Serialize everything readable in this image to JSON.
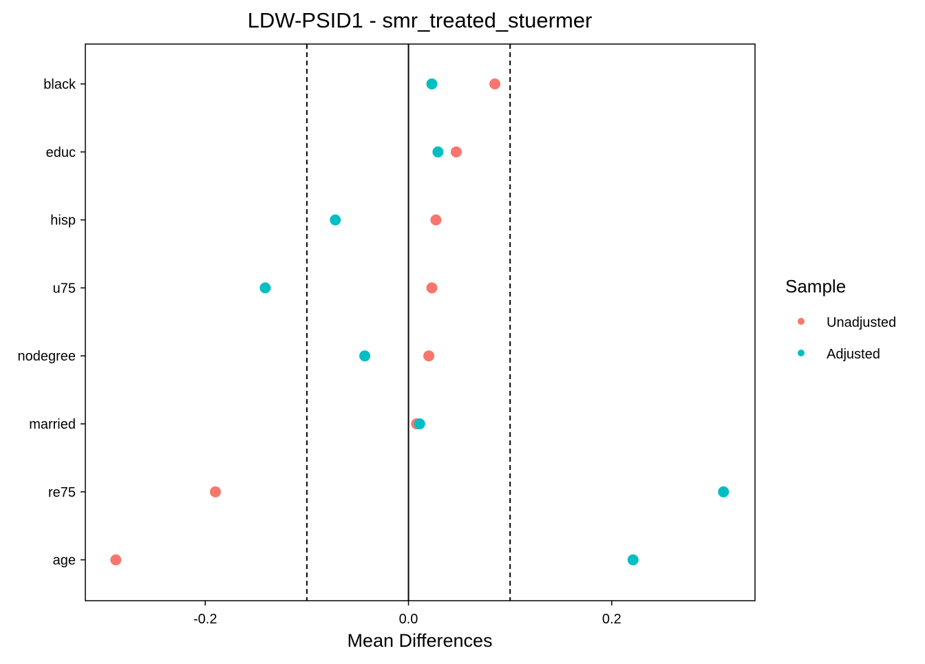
{
  "chart_data": {
    "type": "scatter",
    "title": "LDW-PSID1 - smr_treated_stuermer",
    "xlabel": "Mean Differences",
    "ylabel": "",
    "xlim": [
      -0.318,
      0.341
    ],
    "x_ticks": [
      -0.2,
      0.0,
      0.2
    ],
    "x_tick_labels": [
      "-0.2",
      "0.0",
      "0.2"
    ],
    "categories": [
      "black",
      "educ",
      "hisp",
      "u75",
      "nodegree",
      "married",
      "re75",
      "age"
    ],
    "reference_lines": [
      {
        "value": 0.0,
        "style": "solid"
      },
      {
        "value": -0.1,
        "style": "dashed"
      },
      {
        "value": 0.1,
        "style": "dashed"
      }
    ],
    "series": [
      {
        "name": "Unadjusted",
        "color": "#F8766D",
        "values": [
          0.085,
          0.047,
          0.027,
          0.023,
          0.02,
          0.008,
          -0.19,
          -0.288
        ]
      },
      {
        "name": "Adjusted",
        "color": "#00BFC4",
        "values": [
          0.023,
          0.029,
          -0.072,
          -0.141,
          -0.043,
          0.011,
          0.31,
          0.221
        ]
      }
    ],
    "legend": {
      "title": "Sample",
      "position": "right"
    },
    "grid": false
  }
}
